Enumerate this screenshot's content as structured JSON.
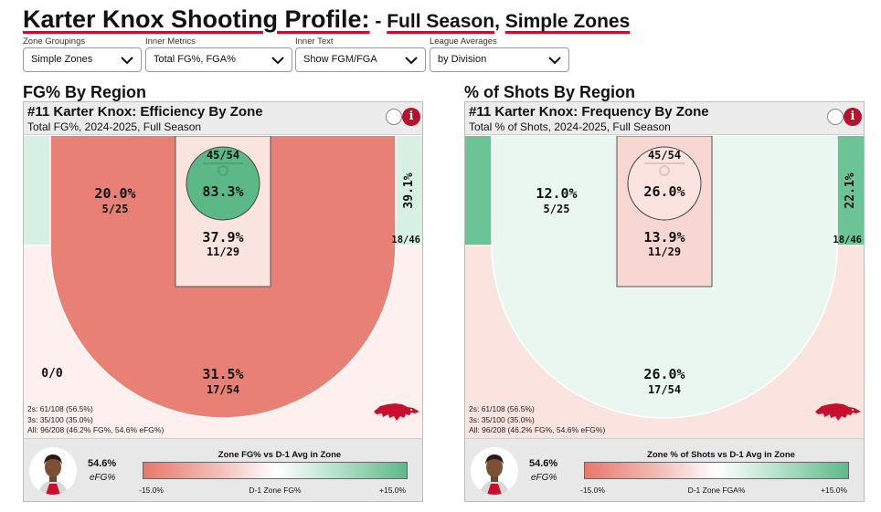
{
  "page": {
    "title_main": "Karter Knox Shooting Profile:",
    "title_sep": " - ",
    "title_part1": "Full Season",
    "title_comma": ", ",
    "title_part2": "Simple Zones"
  },
  "filters": [
    {
      "label": "Zone Groupings",
      "value": "Simple Zones"
    },
    {
      "label": "Inner Metrics",
      "value": "Total FG%, FGA%"
    },
    {
      "label": "Inner Text",
      "value": "Show FGM/FGA"
    },
    {
      "label": "League Averages",
      "value": "by Division"
    }
  ],
  "panels": [
    {
      "section_title": "FG% By Region",
      "title": "#11 Karter Knox: Efficiency By Zone",
      "subtitle": "Total FG%, 2024-2025, Full Season",
      "zones": {
        "left_corner": {
          "main": "",
          "sub": "0/0",
          "color": "#d8efe3"
        },
        "right_corner": {
          "main": "39.1%",
          "sub": "18/46",
          "color": "#d8efe3"
        },
        "midrange": {
          "main": "20.0%",
          "sub": "5/25",
          "color": "#e98076"
        },
        "paint": {
          "main": "37.9%",
          "sub": "11/29",
          "color": "#fbe3e0"
        },
        "rim": {
          "main": "83.3%",
          "sub": "45/54",
          "color": "#5cb887"
        },
        "three": {
          "main": "31.5%",
          "sub": "17/54",
          "color": "#fdf0ee"
        }
      },
      "totals": {
        "twos": "2s: 61/108 (56.5%)",
        "threes": "3s: 35/100 (35.0%)",
        "all": "All: 96/208 (46.2% FG%, 54.6% eFG%)"
      },
      "footer": {
        "efg_value": "54.6%",
        "efg_label": "eFG%",
        "legend_title": "Zone FG% vs D-1 Avg in Zone",
        "legend_min": "-15.0%",
        "legend_mid": "D-1 Zone FG%",
        "legend_max": "+15.0%"
      }
    },
    {
      "section_title": "% of Shots By Region",
      "title": "#11 Karter Knox: Frequency By Zone",
      "subtitle": "Total % of Shots, 2024-2025, Full Season",
      "zones": {
        "left_corner": {
          "main": "",
          "sub": "",
          "color": "#6cc496"
        },
        "right_corner": {
          "main": "22.1%",
          "sub": "18/46",
          "color": "#6cc496"
        },
        "midrange": {
          "main": "12.0%",
          "sub": "5/25",
          "color": "#eaf7f0"
        },
        "paint": {
          "main": "13.9%",
          "sub": "11/29",
          "color": "#f8d6d2"
        },
        "rim": {
          "main": "26.0%",
          "sub": "45/54",
          "color": "#fbe3e0"
        },
        "three": {
          "main": "26.0%",
          "sub": "17/54",
          "color": "#fbe3e0"
        }
      },
      "totals": {
        "twos": "2s: 61/108 (56.5%)",
        "threes": "3s: 35/100 (35.0%)",
        "all": "All: 96/208 (46.2% FG%, 54.6% eFG%)"
      },
      "footer": {
        "efg_value": "54.6%",
        "efg_label": "eFG%",
        "legend_title": "Zone % of Shots vs D-1 Avg in Zone",
        "legend_min": "-15.0%",
        "legend_mid": "D-1 Zone FGA%",
        "legend_max": "+15.0%"
      }
    }
  ],
  "icons": {
    "info": "i",
    "chevron": "chevron-down-icon",
    "logo": "razorback-logo-icon"
  }
}
